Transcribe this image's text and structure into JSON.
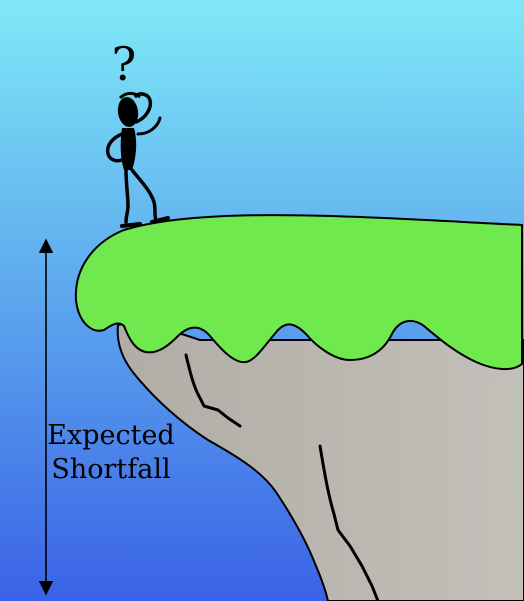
{
  "figure": {
    "label_lines": [
      "Expected",
      "Shortfall"
    ],
    "question_mark": "?",
    "figure_icon": "confused-stick-figure-icon",
    "colors": {
      "sky_top": "#7fe9f6",
      "sky_bottom": "#3a62e6",
      "grass": "#6fe94e",
      "rock": "#b0aca6",
      "rock_light": "#c3c0ba",
      "outline": "#000000"
    }
  }
}
